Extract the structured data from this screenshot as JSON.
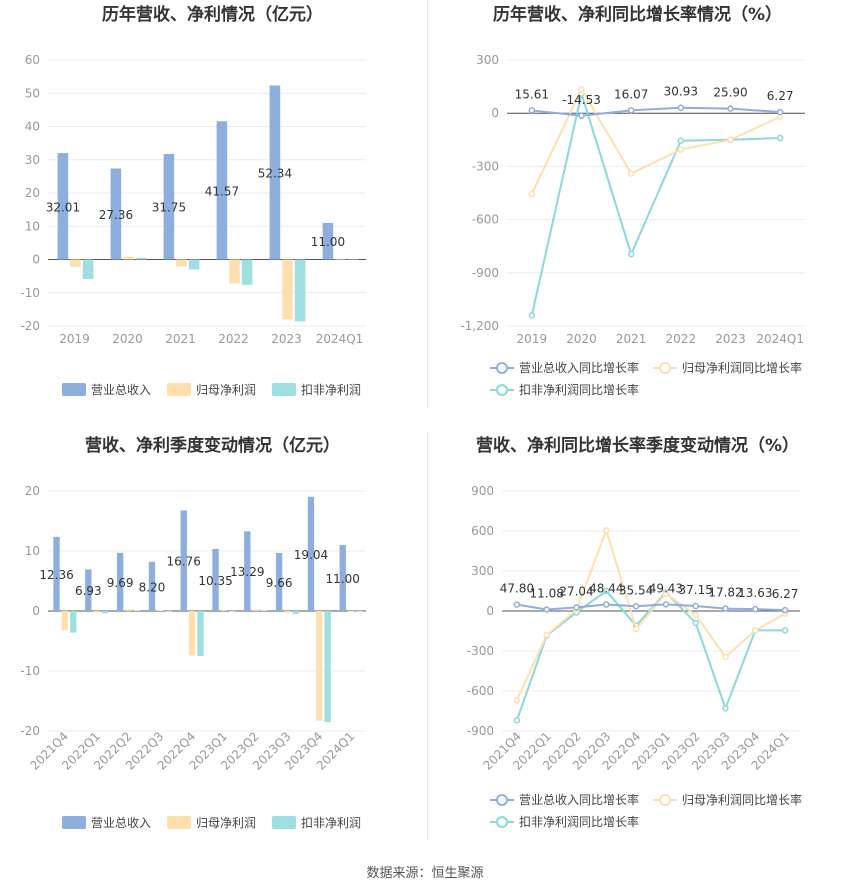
{
  "source_text": "数据来源：恒生聚源",
  "colors": {
    "revenue": "#8eaedd",
    "net_profit": "#fde0ae",
    "deducted_profit": "#9fdfe0",
    "revenue_line": "#8eaedd",
    "net_profit_line": "#fde0ae",
    "deducted_profit_line": "#8dd8dc",
    "axis": "#999999",
    "grid": "#e8ecf4"
  },
  "chart_data": [
    {
      "id": "annual-amounts",
      "type": "bar",
      "title": "历年营收、净利情况（亿元）",
      "categories": [
        "2019",
        "2020",
        "2021",
        "2022",
        "2023",
        "2024Q1"
      ],
      "yticks": [
        "60",
        "50",
        "40",
        "30",
        "20",
        "10",
        "0",
        "-10",
        "-20"
      ],
      "ylim": [
        -20,
        60
      ],
      "series": [
        {
          "name": "营业总收入",
          "values": [
            32.01,
            27.36,
            31.75,
            41.57,
            52.34,
            11.0
          ]
        },
        {
          "name": "归母净利润",
          "values": [
            -2.2,
            0.8,
            -2.1,
            -7.2,
            -18.0,
            0.0
          ]
        },
        {
          "name": "扣非净利润",
          "values": [
            -5.9,
            0.5,
            -3.0,
            -7.6,
            -18.6,
            0.0
          ]
        }
      ],
      "data_labels": [
        "32.01",
        "27.36",
        "31.75",
        "41.57",
        "52.34",
        "11.00"
      ],
      "legend": "bottom",
      "grid": true
    },
    {
      "id": "annual-growth",
      "type": "line",
      "title": "历年营收、净利同比增长率情况（%）",
      "categories": [
        "2019",
        "2020",
        "2021",
        "2022",
        "2023",
        "2024Q1"
      ],
      "yticks": [
        "300",
        "0",
        "-300",
        "-600",
        "-900",
        "-1,200"
      ],
      "ylim": [
        -1200,
        300
      ],
      "series": [
        {
          "name": "营业总收入同比增长率",
          "values": [
            15.61,
            -14.53,
            16.07,
            30.93,
            25.9,
            6.27
          ]
        },
        {
          "name": "归母净利润同比增长率",
          "values": [
            -455,
            135,
            -340,
            -205,
            -150,
            -20
          ]
        },
        {
          "name": "扣非净利润同比增长率",
          "values": [
            -1140,
            110,
            -795,
            -155,
            -150,
            -140
          ]
        }
      ],
      "data_labels": [
        "15.61",
        "-14.53",
        "16.07",
        "30.93",
        "25.90",
        "6.27"
      ],
      "legend": "bottom",
      "grid": true
    },
    {
      "id": "quarterly-amounts",
      "type": "bar",
      "title": "营收、净利季度变动情况（亿元）",
      "categories": [
        "2021Q4",
        "2022Q1",
        "2022Q2",
        "2022Q3",
        "2022Q4",
        "2023Q1",
        "2023Q2",
        "2023Q3",
        "2023Q4",
        "2024Q1"
      ],
      "yticks": [
        "20",
        "10",
        "0",
        "-10",
        "-20"
      ],
      "ylim": [
        -20,
        20
      ],
      "series": [
        {
          "name": "营业总收入",
          "values": [
            12.36,
            6.93,
            9.69,
            8.2,
            16.76,
            10.35,
            13.29,
            9.66,
            19.04,
            11.0
          ]
        },
        {
          "name": "归母净利润",
          "values": [
            -3.2,
            -0.3,
            0.3,
            0.1,
            -7.4,
            0.2,
            0.3,
            -0.3,
            -18.3,
            0.0
          ]
        },
        {
          "name": "扣非净利润",
          "values": [
            -3.6,
            -0.4,
            0.1,
            0.0,
            -7.5,
            0.0,
            0.1,
            -0.5,
            -18.5,
            0.0
          ]
        }
      ],
      "data_labels": [
        "12.36",
        "6.93",
        "9.69",
        "8.20",
        "16.76",
        "10.35",
        "13.29",
        "9.66",
        "19.04",
        "11.00"
      ],
      "legend": "bottom",
      "grid": true
    },
    {
      "id": "quarterly-growth",
      "type": "line",
      "title": "营收、净利同比增长率季度变动情况（%）",
      "categories": [
        "2021Q4",
        "2022Q1",
        "2022Q2",
        "2022Q3",
        "2022Q4",
        "2023Q1",
        "2023Q2",
        "2023Q3",
        "2023Q4",
        "2024Q1"
      ],
      "yticks": [
        "900",
        "600",
        "300",
        "0",
        "-300",
        "-600",
        "-900"
      ],
      "ylim": [
        -900,
        900
      ],
      "series": [
        {
          "name": "营业总收入同比增长率",
          "values": [
            47.8,
            11.08,
            27.04,
            48.44,
            35.54,
            49.43,
            37.15,
            17.82,
            13.63,
            6.27
          ]
        },
        {
          "name": "归母净利润同比增长率",
          "values": [
            -670,
            -180,
            10,
            605,
            -135,
            130,
            -30,
            -345,
            -145,
            -20
          ]
        },
        {
          "name": "扣非净利润同比增长率",
          "values": [
            -820,
            -185,
            -10,
            150,
            -110,
            140,
            -90,
            -730,
            -145,
            -145
          ]
        }
      ],
      "data_labels": [
        "47.80",
        "11.08",
        "27.04",
        "48.44",
        "35.54",
        "49.43",
        "37.15",
        "17.82",
        "13.63",
        "6.27"
      ],
      "legend": "bottom",
      "grid": true
    }
  ]
}
